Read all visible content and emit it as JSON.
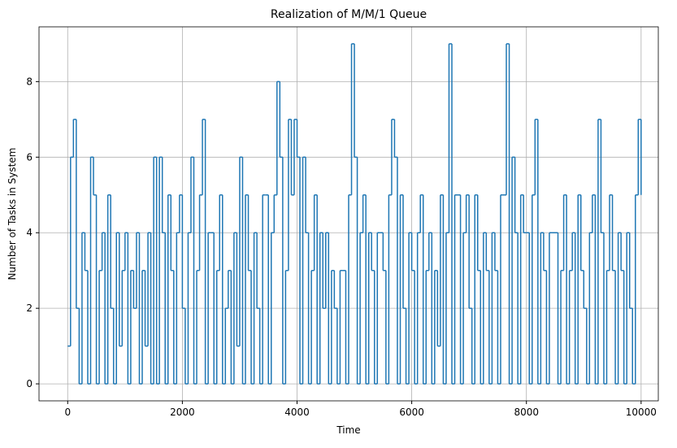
{
  "chart_data": {
    "type": "step",
    "title": "Realization of M/M/1 Queue",
    "x_label": "Time",
    "y_label": "Number of Tasks in System",
    "color": "#1f77b4",
    "grid": true,
    "xlim": [
      -500,
      10300
    ],
    "xticks": [
      0,
      2000,
      4000,
      6000,
      8000,
      10000
    ],
    "ylim": [
      -0.45,
      9.45
    ],
    "yticks": [
      0,
      2,
      4,
      6,
      8
    ],
    "x": [
      0,
      50,
      100,
      150,
      200,
      250,
      300,
      350,
      400,
      450,
      500,
      550,
      600,
      650,
      700,
      750,
      800,
      850,
      900,
      950,
      1000,
      1050,
      1100,
      1150,
      1200,
      1250,
      1300,
      1350,
      1400,
      1450,
      1500,
      1550,
      1600,
      1650,
      1700,
      1750,
      1800,
      1850,
      1900,
      1950,
      2000,
      2050,
      2100,
      2150,
      2200,
      2250,
      2300,
      2350,
      2400,
      2450,
      2500,
      2550,
      2600,
      2650,
      2700,
      2750,
      2800,
      2850,
      2900,
      2950,
      3000,
      3050,
      3100,
      3150,
      3200,
      3250,
      3300,
      3350,
      3400,
      3450,
      3500,
      3550,
      3600,
      3650,
      3700,
      3750,
      3800,
      3850,
      3900,
      3950,
      4000,
      4050,
      4100,
      4150,
      4200,
      4250,
      4300,
      4350,
      4400,
      4450,
      4500,
      4550,
      4600,
      4650,
      4700,
      4750,
      4800,
      4850,
      4900,
      4950,
      5000,
      5050,
      5100,
      5150,
      5200,
      5250,
      5300,
      5350,
      5400,
      5450,
      5500,
      5550,
      5600,
      5650,
      5700,
      5750,
      5800,
      5850,
      5900,
      5950,
      6000,
      6050,
      6100,
      6150,
      6200,
      6250,
      6300,
      6350,
      6400,
      6450,
      6500,
      6550,
      6600,
      6650,
      6700,
      6750,
      6800,
      6850,
      6900,
      6950,
      7000,
      7050,
      7100,
      7150,
      7200,
      7250,
      7300,
      7350,
      7400,
      7450,
      7500,
      7550,
      7600,
      7650,
      7700,
      7750,
      7800,
      7850,
      7900,
      7950,
      8000,
      8050,
      8100,
      8150,
      8200,
      8250,
      8300,
      8350,
      8400,
      8450,
      8500,
      8550,
      8600,
      8650,
      8700,
      8750,
      8800,
      8850,
      8900,
      8950,
      9000,
      9050,
      9100,
      9150,
      9200,
      9250,
      9300,
      9350,
      9400,
      9450,
      9500,
      9550,
      9600,
      9650,
      9700,
      9750,
      9800,
      9850,
      9900,
      9950,
      10000
    ],
    "values": [
      1,
      6,
      7,
      2,
      0,
      4,
      3,
      0,
      6,
      5,
      0,
      3,
      4,
      0,
      5,
      2,
      0,
      4,
      1,
      3,
      4,
      0,
      3,
      2,
      4,
      0,
      3,
      1,
      4,
      0,
      6,
      0,
      6,
      4,
      0,
      5,
      3,
      0,
      4,
      5,
      2,
      0,
      4,
      6,
      0,
      3,
      5,
      7,
      0,
      4,
      4,
      0,
      3,
      5,
      0,
      2,
      3,
      0,
      4,
      1,
      6,
      0,
      5,
      3,
      0,
      4,
      2,
      0,
      5,
      5,
      0,
      4,
      5,
      8,
      6,
      0,
      3,
      7,
      5,
      7,
      6,
      0,
      6,
      4,
      0,
      3,
      5,
      0,
      4,
      2,
      4,
      0,
      3,
      2,
      0,
      3,
      3,
      0,
      5,
      9,
      6,
      0,
      4,
      5,
      0,
      4,
      3,
      0,
      4,
      4,
      3,
      0,
      5,
      7,
      6,
      0,
      5,
      2,
      0,
      4,
      3,
      0,
      4,
      5,
      0,
      3,
      4,
      0,
      3,
      1,
      5,
      0,
      4,
      9,
      0,
      5,
      5,
      0,
      4,
      5,
      2,
      0,
      5,
      3,
      0,
      4,
      3,
      0,
      4,
      3,
      0,
      5,
      5,
      9,
      0,
      6,
      4,
      0,
      5,
      4,
      4,
      0,
      5,
      7,
      0,
      4,
      3,
      0,
      4,
      4,
      4,
      0,
      3,
      5,
      0,
      3,
      4,
      0,
      5,
      3,
      2,
      0,
      4,
      5,
      0,
      7,
      4,
      0,
      3,
      5,
      3,
      0,
      4,
      3,
      0,
      4,
      2,
      0,
      5,
      7,
      5
    ]
  }
}
